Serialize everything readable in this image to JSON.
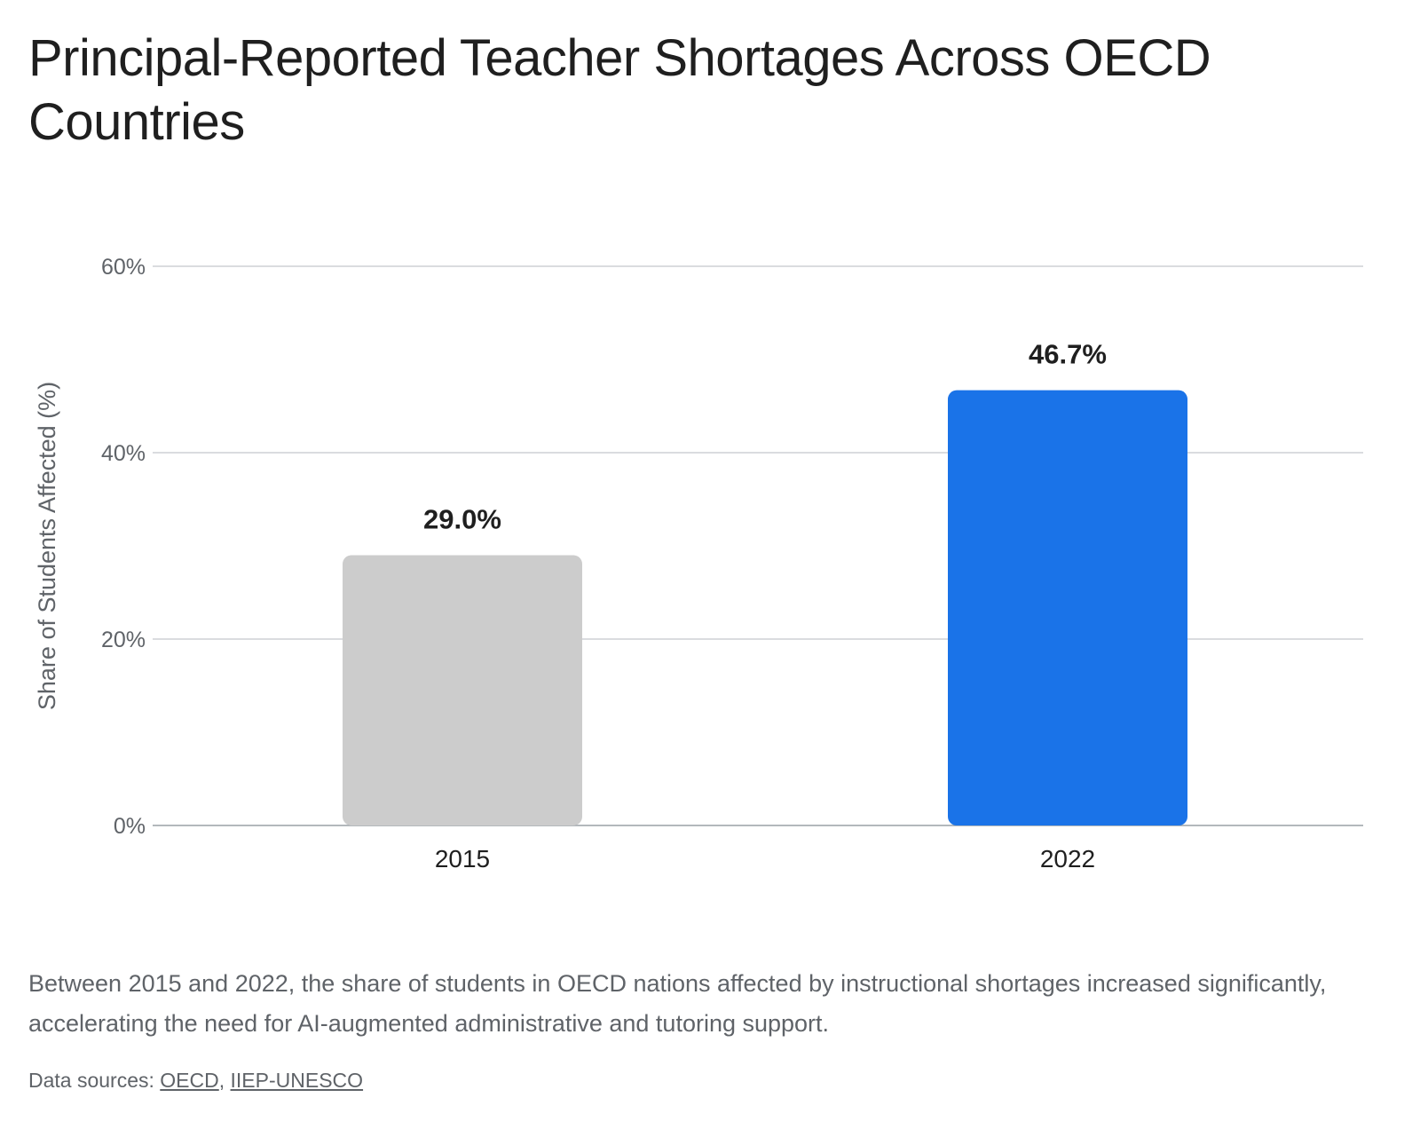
{
  "chart_data": {
    "type": "bar",
    "title": "Principal-Reported Teacher Shortages Across OECD Countries",
    "ylabel": "Share of Students Affected (%)",
    "xlabel": "",
    "categories": [
      "2015",
      "2022"
    ],
    "values": [
      29.0,
      46.7
    ],
    "data_labels": [
      "29.0%",
      "46.7%"
    ],
    "ylim": [
      0,
      60
    ],
    "yticks": [
      0,
      20,
      40,
      60
    ],
    "ytick_labels": [
      "0%",
      "20%",
      "40%",
      "60%"
    ],
    "bar_colors": [
      "#cccccc",
      "#1a73e8"
    ],
    "grid": true,
    "legend": "none"
  },
  "caption": "Between 2015 and 2022, the share of students in OECD nations affected by instructional shortages increased significantly, accelerating the need for AI-augmented administrative and tutoring support.",
  "sources": {
    "prefix": "Data sources:",
    "separator": ",",
    "links": [
      "OECD",
      "IIEP-UNESCO"
    ]
  }
}
